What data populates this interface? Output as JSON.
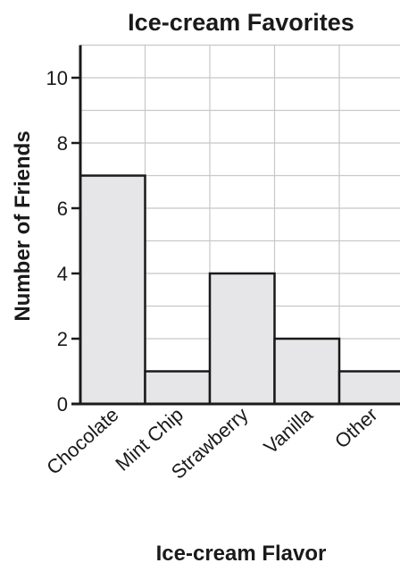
{
  "chart_data": {
    "type": "bar",
    "title": "Ice-cream Favorites",
    "xlabel": "Ice-cream Flavor",
    "ylabel": "Number of Friends",
    "categories": [
      "Chocolate",
      "Mint Chip",
      "Strawberry",
      "Vanilla",
      "Other"
    ],
    "values": [
      7,
      1,
      4,
      2,
      1
    ],
    "ylim": [
      0,
      11
    ],
    "yticks": [
      0,
      2,
      4,
      6,
      8,
      10
    ],
    "grid": true,
    "bar_color": "#e6e6e8",
    "bar_edge_color": "#1a1a1a",
    "grid_color": "#c8c8c8"
  }
}
